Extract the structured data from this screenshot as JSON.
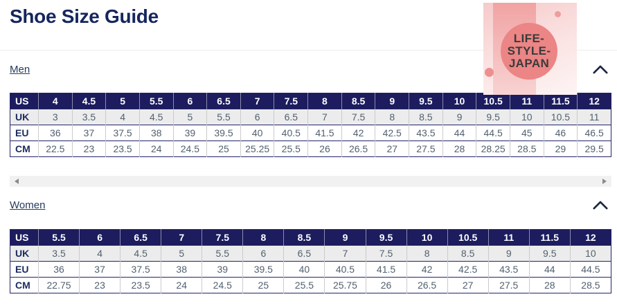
{
  "page": {
    "title": "Shoe Size Guide"
  },
  "logo": {
    "name": "LIFE-STYLE-JAPAN",
    "lines": [
      "LIFE-",
      "STYLE-",
      "JAPAN"
    ]
  },
  "colors": {
    "navy": "#1c1c5e",
    "border_h": "#23236b",
    "border_v": "#cbcbcb",
    "data_text": "#51606e",
    "label_text": "#1b2a5e",
    "link": "#253a5e",
    "alt_row": "#ececec",
    "logo_circle": "#ec8585",
    "logo_text": "#3a3a3a"
  },
  "sections": [
    {
      "label": "Men",
      "table": {
        "rows": [
          {
            "label": "US",
            "values": [
              "4",
              "4.5",
              "5",
              "5.5",
              "6",
              "6.5",
              "7",
              "7.5",
              "8",
              "8.5",
              "9",
              "9.5",
              "10",
              "10.5",
              "11",
              "11.5",
              "12"
            ]
          },
          {
            "label": "UK",
            "values": [
              "3",
              "3.5",
              "4",
              "4.5",
              "5",
              "5.5",
              "6",
              "6.5",
              "7",
              "7.5",
              "8",
              "8.5",
              "9",
              "9.5",
              "10",
              "10.5",
              "11"
            ]
          },
          {
            "label": "EU",
            "values": [
              "36",
              "37",
              "37.5",
              "38",
              "39",
              "39.5",
              "40",
              "40.5",
              "41.5",
              "42",
              "42.5",
              "43.5",
              "44",
              "44.5",
              "45",
              "46",
              "46.5"
            ]
          },
          {
            "label": "CM",
            "values": [
              "22.5",
              "23",
              "23.5",
              "24",
              "24.5",
              "25",
              "25.25",
              "25.5",
              "26",
              "26.5",
              "27",
              "27.5",
              "28",
              "28.25",
              "28.5",
              "29",
              "29.5"
            ]
          }
        ]
      }
    },
    {
      "label": "Women",
      "table": {
        "rows": [
          {
            "label": "US",
            "values": [
              "5.5",
              "6",
              "6.5",
              "7",
              "7.5",
              "8",
              "8.5",
              "9",
              "9.5",
              "10",
              "10.5",
              "11",
              "11.5",
              "12"
            ]
          },
          {
            "label": "UK",
            "values": [
              "3.5",
              "4",
              "4.5",
              "5",
              "5.5",
              "6",
              "6.5",
              "7",
              "7.5",
              "8",
              "8.5",
              "9",
              "9.5",
              "10"
            ]
          },
          {
            "label": "EU",
            "values": [
              "36",
              "37",
              "37.5",
              "38",
              "39",
              "39.5",
              "40",
              "40.5",
              "41.5",
              "42",
              "42.5",
              "43.5",
              "44",
              "44.5"
            ]
          },
          {
            "label": "CM",
            "values": [
              "22.75",
              "23",
              "23.5",
              "24",
              "24.5",
              "25",
              "25.5",
              "25.75",
              "26",
              "26.5",
              "27",
              "27.5",
              "28",
              "28.5"
            ]
          }
        ]
      }
    }
  ]
}
